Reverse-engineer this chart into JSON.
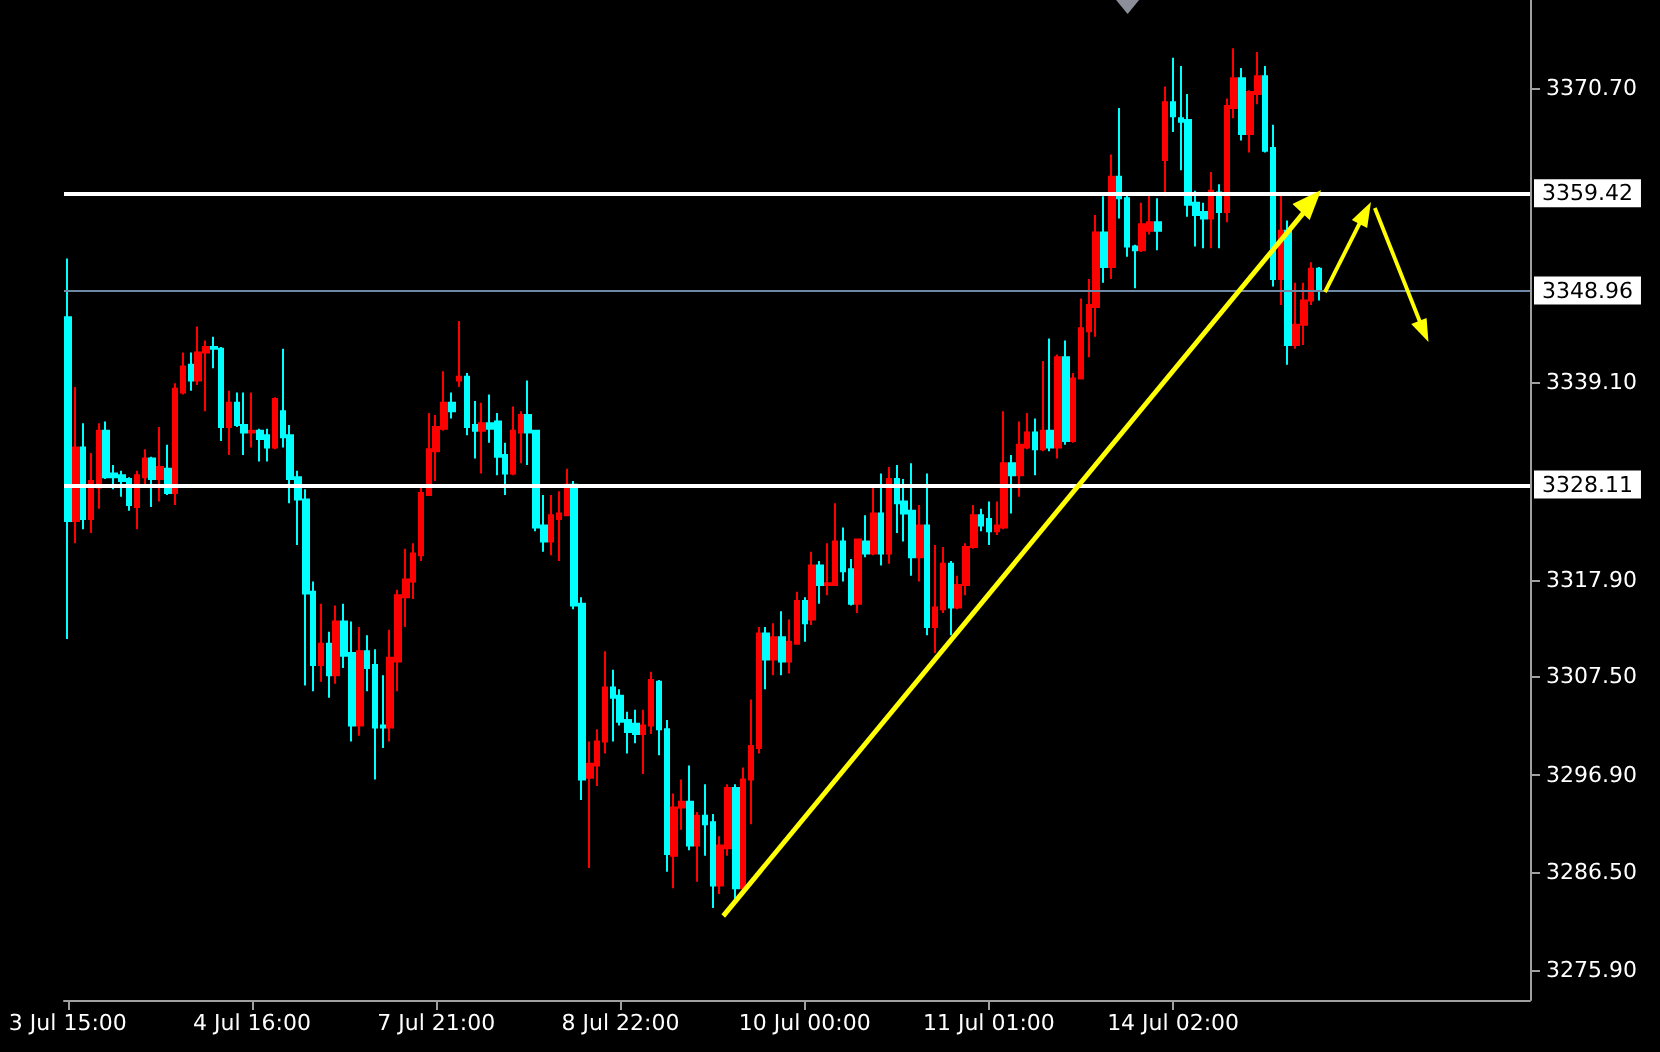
{
  "chart_data": {
    "type": "candlestick",
    "categories": [
      "3 Jul 15:00",
      null,
      null,
      null,
      null,
      null,
      null,
      null,
      null,
      null,
      null,
      null,
      null,
      null,
      null,
      null,
      null,
      null,
      null,
      null,
      null,
      null,
      null,
      null,
      "4 Jul 16:00",
      null,
      null,
      null,
      null,
      null,
      null,
      null,
      null,
      null,
      null,
      null,
      null,
      null,
      null,
      null,
      null,
      null,
      null,
      null,
      null,
      null,
      null,
      null,
      "7 Jul 21:00",
      null,
      null,
      null,
      null,
      null,
      null,
      null,
      null,
      null,
      null,
      null,
      null,
      null,
      null,
      null,
      null,
      null,
      null,
      null,
      null,
      null,
      null,
      null,
      "8 Jul 22:00",
      null,
      null,
      null,
      null,
      null,
      null,
      null,
      null,
      null,
      null,
      null,
      null,
      null,
      null,
      null,
      null,
      null,
      null,
      null,
      null,
      null,
      null,
      null,
      "10 Jul 00:00",
      null,
      null,
      null,
      null,
      null,
      null,
      null,
      null,
      null,
      null,
      null,
      null,
      null,
      null,
      null,
      null,
      null,
      null,
      null,
      null,
      null,
      null,
      null,
      "11 Jul 01:00",
      null,
      null,
      null,
      null,
      null,
      null,
      null,
      null,
      null,
      null,
      null,
      null,
      null,
      null,
      null,
      null,
      null,
      null,
      null,
      null,
      null,
      null,
      null,
      "14 Jul 02:00",
      null,
      null,
      null,
      null,
      null,
      null,
      null,
      null,
      null,
      null,
      null,
      null,
      null,
      null,
      null,
      null,
      null,
      null,
      null,
      null,
      null,
      null,
      null,
      null,
      null,
      null,
      null,
      null,
      null,
      null,
      null,
      null,
      null,
      null,
      null,
      null,
      null,
      null,
      null,
      null,
      null,
      null,
      null,
      null,
      null,
      null
    ],
    "ohlc": [
      [
        3346.1,
        3352.4,
        3311.5,
        3324.2
      ],
      [
        3324.2,
        3338.6,
        3321.8,
        3332.1
      ],
      [
        3332.1,
        3334.7,
        3323.3,
        3324.4
      ],
      [
        3324.4,
        3331.5,
        3322.9,
        3328.5
      ],
      [
        3327.8,
        3334.7,
        3325.5,
        3333.9
      ],
      [
        3333.9,
        3334.9,
        3328.7,
        3328.9
      ],
      [
        3329.3,
        3330.2,
        3327.6,
        3328.9
      ],
      [
        3329.1,
        3329.6,
        3326.8,
        3328.5
      ],
      [
        3328.7,
        3328.9,
        3325.3,
        3325.9
      ],
      [
        3325.7,
        3329.6,
        3323.3,
        3329.1
      ],
      [
        3328.9,
        3331.9,
        3328.1,
        3330.9
      ],
      [
        3330.9,
        3331.1,
        3325.7,
        3328.7
      ],
      [
        3328.7,
        3334.3,
        3326.3,
        3330.0
      ],
      [
        3329.8,
        3332.4,
        3327.0,
        3327.2
      ],
      [
        3327.2,
        3339.0,
        3325.9,
        3338.4
      ],
      [
        3338.0,
        3342.3,
        3337.8,
        3340.8
      ],
      [
        3341.0,
        3342.3,
        3338.2,
        3339.3
      ],
      [
        3339.3,
        3345.1,
        3338.8,
        3342.3
      ],
      [
        3342.3,
        3343.6,
        3336.0,
        3342.9
      ],
      [
        3342.9,
        3344.0,
        3340.6,
        3342.7
      ],
      [
        3342.7,
        3342.9,
        3332.8,
        3334.3
      ],
      [
        3334.3,
        3338.2,
        3331.3,
        3336.9
      ],
      [
        3336.9,
        3338.0,
        3334.3,
        3334.5
      ],
      [
        3334.5,
        3338.0,
        3331.3,
        3333.7
      ],
      [
        3333.7,
        3338.0,
        3332.1,
        3333.9
      ],
      [
        3333.9,
        3334.1,
        3330.6,
        3333.0
      ],
      [
        3333.4,
        3334.1,
        3330.6,
        3332.1
      ],
      [
        3332.1,
        3337.5,
        3331.9,
        3337.3
      ],
      [
        3336.0,
        3342.7,
        3332.1,
        3333.2
      ],
      [
        3333.4,
        3334.5,
        3326.1,
        3328.7
      ],
      [
        3328.9,
        3329.6,
        3321.6,
        3326.5
      ],
      [
        3326.5,
        3327.6,
        3306.5,
        3316.4
      ],
      [
        3316.6,
        3317.7,
        3305.9,
        3308.7
      ],
      [
        3308.7,
        3315.3,
        3306.9,
        3311.0
      ],
      [
        3311.0,
        3312.3,
        3305.2,
        3307.6
      ],
      [
        3307.6,
        3315.1,
        3306.7,
        3313.4
      ],
      [
        3313.4,
        3315.3,
        3308.4,
        3309.7
      ],
      [
        3310.0,
        3313.4,
        3300.5,
        3302.2
      ],
      [
        3302.2,
        3312.8,
        3301.1,
        3310.2
      ],
      [
        3310.2,
        3311.9,
        3305.9,
        3308.4
      ],
      [
        3308.7,
        3310.4,
        3296.4,
        3302.0
      ],
      [
        3302.2,
        3307.6,
        3299.8,
        3302.0
      ],
      [
        3302.0,
        3312.5,
        3300.5,
        3309.5
      ],
      [
        3309.1,
        3316.8,
        3305.9,
        3316.2
      ],
      [
        3316.0,
        3321.2,
        3312.8,
        3317.9
      ],
      [
        3317.7,
        3321.8,
        3315.8,
        3320.7
      ],
      [
        3320.5,
        3327.8,
        3319.9,
        3327.2
      ],
      [
        3327.0,
        3335.8,
        3327.0,
        3331.9
      ],
      [
        3331.7,
        3335.6,
        3328.5,
        3334.3
      ],
      [
        3334.1,
        3340.3,
        3333.9,
        3336.9
      ],
      [
        3336.9,
        3338.0,
        3335.2,
        3336.0
      ],
      [
        3339.3,
        3345.7,
        3338.6,
        3339.7
      ],
      [
        3339.7,
        3340.1,
        3333.4,
        3334.3
      ],
      [
        3334.5,
        3337.1,
        3330.9,
        3333.9
      ],
      [
        3333.9,
        3336.9,
        3329.3,
        3334.7
      ],
      [
        3334.7,
        3337.8,
        3332.6,
        3334.1
      ],
      [
        3334.9,
        3335.8,
        3329.1,
        3331.1
      ],
      [
        3331.3,
        3332.6,
        3327.0,
        3329.3
      ],
      [
        3329.3,
        3336.5,
        3329.1,
        3333.9
      ],
      [
        3333.7,
        3336.0,
        3330.4,
        3335.6
      ],
      [
        3335.6,
        3339.3,
        3330.2,
        3333.7
      ],
      [
        3333.9,
        3333.9,
        3323.1,
        3323.5
      ],
      [
        3323.7,
        3327.0,
        3320.9,
        3322.0
      ],
      [
        3322.0,
        3327.0,
        3320.5,
        3324.8
      ],
      [
        3324.4,
        3327.4,
        3319.9,
        3325.0
      ],
      [
        3324.8,
        3329.8,
        3324.8,
        3328.1
      ],
      [
        3328.1,
        3328.5,
        3314.7,
        3315.1
      ],
      [
        3315.3,
        3316.0,
        3294.2,
        3296.4
      ],
      [
        3296.6,
        3300.5,
        3286.9,
        3298.1
      ],
      [
        3297.9,
        3301.8,
        3295.7,
        3300.5
      ],
      [
        3300.5,
        3310.2,
        3299.2,
        3306.3
      ],
      [
        3306.3,
        3308.2,
        3300.5,
        3305.2
      ],
      [
        3305.4,
        3306.1,
        3302.2,
        3302.6
      ],
      [
        3302.8,
        3303.7,
        3299.2,
        3301.5
      ],
      [
        3302.4,
        3303.9,
        3300.3,
        3301.3
      ],
      [
        3301.3,
        3303.9,
        3297.0,
        3302.2
      ],
      [
        3302.2,
        3308.0,
        3301.3,
        3307.1
      ],
      [
        3306.9,
        3307.1,
        3299.0,
        3301.8
      ],
      [
        3301.8,
        3302.8,
        3286.5,
        3288.4
      ],
      [
        3288.2,
        3294.9,
        3284.7,
        3293.4
      ],
      [
        3293.4,
        3296.4,
        3291.0,
        3294.0
      ],
      [
        3294.0,
        3297.9,
        3288.8,
        3289.3
      ],
      [
        3289.3,
        3292.9,
        3285.4,
        3292.5
      ],
      [
        3292.5,
        3295.9,
        3288.2,
        3291.6
      ],
      [
        3291.8,
        3292.7,
        3282.6,
        3285.0
      ],
      [
        3285.0,
        3290.3,
        3284.1,
        3289.3
      ],
      [
        3289.0,
        3295.9,
        3288.2,
        3295.5
      ],
      [
        3295.5,
        3295.9,
        3283.2,
        3284.7
      ],
      [
        3284.7,
        3297.7,
        3284.7,
        3296.4
      ],
      [
        3296.4,
        3305.0,
        3291.6,
        3300.0
      ],
      [
        3299.8,
        3312.8,
        3299.2,
        3312.1
      ],
      [
        3312.1,
        3312.8,
        3306.1,
        3309.3
      ],
      [
        3309.3,
        3313.2,
        3307.6,
        3311.7
      ],
      [
        3311.7,
        3314.5,
        3307.6,
        3309.1
      ],
      [
        3309.1,
        3313.6,
        3307.8,
        3311.2
      ],
      [
        3311.0,
        3316.6,
        3311.0,
        3315.6
      ],
      [
        3315.6,
        3316.0,
        3311.2,
        3313.2
      ],
      [
        3313.6,
        3320.9,
        3313.0,
        3319.4
      ],
      [
        3319.4,
        3319.9,
        3315.3,
        3317.3
      ],
      [
        3317.3,
        3321.8,
        3316.2,
        3317.5
      ],
      [
        3317.3,
        3326.1,
        3317.3,
        3322.0
      ],
      [
        3322.0,
        3323.5,
        3317.7,
        3318.8
      ],
      [
        3319.0,
        3320.1,
        3315.1,
        3315.3
      ],
      [
        3315.3,
        3322.2,
        3314.3,
        3322.2
      ],
      [
        3322.0,
        3324.8,
        3320.3,
        3320.7
      ],
      [
        3320.7,
        3328.1,
        3320.5,
        3325.0
      ],
      [
        3325.0,
        3329.3,
        3319.4,
        3320.7
      ],
      [
        3320.7,
        3330.0,
        3319.6,
        3328.7
      ],
      [
        3328.7,
        3330.2,
        3322.9,
        3326.1
      ],
      [
        3326.3,
        3328.7,
        3322.0,
        3325.0
      ],
      [
        3325.3,
        3330.4,
        3318.3,
        3320.3
      ],
      [
        3320.3,
        3325.9,
        3317.7,
        3323.7
      ],
      [
        3323.7,
        3329.3,
        3311.9,
        3312.8
      ],
      [
        3312.8,
        3321.6,
        3310.0,
        3314.9
      ],
      [
        3314.7,
        3321.4,
        3314.3,
        3319.6
      ],
      [
        3319.6,
        3319.9,
        3311.9,
        3314.9
      ],
      [
        3314.9,
        3318.3,
        3314.7,
        3317.3
      ],
      [
        3317.3,
        3321.8,
        3316.2,
        3321.4
      ],
      [
        3321.4,
        3325.9,
        3321.2,
        3324.8
      ],
      [
        3324.8,
        3325.5,
        3323.1,
        3323.7
      ],
      [
        3324.4,
        3326.3,
        3321.6,
        3323.1
      ],
      [
        3323.1,
        3326.3,
        3322.7,
        3323.7
      ],
      [
        3323.5,
        3336.0,
        3323.3,
        3330.4
      ],
      [
        3330.4,
        3331.3,
        3325.0,
        3329.1
      ],
      [
        3329.1,
        3334.9,
        3326.8,
        3332.4
      ],
      [
        3332.1,
        3335.8,
        3331.9,
        3333.7
      ],
      [
        3333.7,
        3335.2,
        3329.1,
        3331.9
      ],
      [
        3331.9,
        3341.4,
        3331.7,
        3333.9
      ],
      [
        3333.9,
        3343.8,
        3331.7,
        3332.1
      ],
      [
        3332.1,
        3342.1,
        3330.9,
        3341.8
      ],
      [
        3341.8,
        3343.6,
        3332.4,
        3332.8
      ],
      [
        3332.8,
        3340.1,
        3332.6,
        3339.5
      ],
      [
        3339.5,
        3348.1,
        3339.5,
        3344.9
      ],
      [
        3344.6,
        3350.2,
        3341.8,
        3347.4
      ],
      [
        3347.2,
        3357.1,
        3344.0,
        3355.2
      ],
      [
        3355.2,
        3359.1,
        3349.8,
        3351.5
      ],
      [
        3351.5,
        3363.6,
        3350.2,
        3361.2
      ],
      [
        3361.2,
        3368.6,
        3356.7,
        3358.9
      ],
      [
        3358.9,
        3359.5,
        3352.6,
        3353.7
      ],
      [
        3353.7,
        3353.9,
        3349.2,
        3353.3
      ],
      [
        3353.3,
        3358.4,
        3353.1,
        3356.1
      ],
      [
        3355.4,
        3359.5,
        3355.0,
        3356.3
      ],
      [
        3356.3,
        3358.9,
        3353.3,
        3355.4
      ],
      [
        3363.0,
        3370.9,
        3359.1,
        3369.2
      ],
      [
        3369.2,
        3374.0,
        3366.0,
        3367.7
      ],
      [
        3367.5,
        3373.1,
        3361.9,
        3367.1
      ],
      [
        3367.3,
        3370.1,
        3356.9,
        3358.2
      ],
      [
        3358.4,
        3359.7,
        3353.7,
        3357.1
      ],
      [
        3357.4,
        3358.4,
        3353.5,
        3356.7
      ],
      [
        3356.7,
        3361.7,
        3353.5,
        3359.7
      ],
      [
        3359.5,
        3360.4,
        3353.5,
        3357.4
      ],
      [
        3357.4,
        3369.6,
        3356.3,
        3368.8
      ],
      [
        3368.6,
        3375.0,
        3367.5,
        3371.8
      ],
      [
        3371.8,
        3372.9,
        3365.1,
        3365.8
      ],
      [
        3365.8,
        3370.5,
        3363.8,
        3370.3
      ],
      [
        3370.1,
        3374.6,
        3369.0,
        3372.0
      ],
      [
        3372.0,
        3373.1,
        3363.8,
        3364.0
      ],
      [
        3364.3,
        3366.8,
        3349.4,
        3350.2
      ],
      [
        3350.2,
        3359.3,
        3347.4,
        3355.4
      ],
      [
        3355.4,
        3356.5,
        3341.0,
        3343.1
      ],
      [
        3343.1,
        3349.8,
        3342.7,
        3345.3
      ],
      [
        3345.3,
        3349.8,
        3343.1,
        3347.9
      ],
      [
        3347.9,
        3352.0,
        3347.4,
        3351.3
      ],
      [
        3351.3,
        3351.5,
        3347.9,
        3349.0
      ],
      null,
      null,
      null,
      null,
      null,
      null,
      null,
      null,
      null,
      null,
      null,
      null,
      null,
      null,
      null,
      null,
      null,
      null,
      null,
      null,
      null,
      null,
      null,
      null,
      null,
      null,
      null
    ],
    "colors": [
      "#00ffff",
      "#ff0000",
      "#00ffff",
      "#ff0000",
      "#ff0000",
      "#00ffff",
      "#00ffff",
      "#00ffff",
      "#00ffff",
      "#ff0000",
      "#ff0000",
      "#00ffff",
      "#ff0000",
      "#00ffff",
      "#ff0000",
      "#ff0000",
      "#00ffff",
      "#ff0000",
      "#ff0000",
      "#00ffff",
      "#00ffff",
      "#ff0000",
      "#00ffff",
      "#00ffff",
      "#ff0000",
      "#00ffff",
      "#00ffff",
      "#ff0000",
      "#00ffff",
      "#00ffff",
      "#00ffff",
      "#00ffff",
      "#00ffff",
      "#ff0000",
      "#00ffff",
      "#ff0000",
      "#00ffff",
      "#00ffff",
      "#ff0000",
      "#00ffff",
      "#00ffff",
      "#00ffff",
      "#ff0000",
      "#ff0000",
      "#ff0000",
      "#ff0000",
      "#ff0000",
      "#ff0000",
      "#ff0000",
      "#ff0000",
      "#00ffff",
      "#ff0000",
      "#00ffff",
      "#00ffff",
      "#ff0000",
      "#00ffff",
      "#00ffff",
      "#00ffff",
      "#ff0000",
      "#ff0000",
      "#00ffff",
      "#00ffff",
      "#00ffff",
      "#ff0000",
      "#ff0000",
      "#ff0000",
      "#00ffff",
      "#00ffff",
      "#ff0000",
      "#ff0000",
      "#ff0000",
      "#00ffff",
      "#00ffff",
      "#00ffff",
      "#00ffff",
      "#ff0000",
      "#ff0000",
      "#00ffff",
      "#00ffff",
      "#ff0000",
      "#ff0000",
      "#00ffff",
      "#ff0000",
      "#00ffff",
      "#00ffff",
      "#ff0000",
      "#ff0000",
      "#00ffff",
      "#ff0000",
      "#ff0000",
      "#ff0000",
      "#00ffff",
      "#ff0000",
      "#00ffff",
      "#ff0000",
      "#ff0000",
      "#00ffff",
      "#ff0000",
      "#00ffff",
      "#ff0000",
      "#ff0000",
      "#00ffff",
      "#00ffff",
      "#ff0000",
      "#00ffff",
      "#ff0000",
      "#00ffff",
      "#ff0000",
      "#00ffff",
      "#00ffff",
      "#00ffff",
      "#ff0000",
      "#00ffff",
      "#ff0000",
      "#ff0000",
      "#00ffff",
      "#ff0000",
      "#ff0000",
      "#ff0000",
      "#00ffff",
      "#00ffff",
      "#ff0000",
      "#ff0000",
      "#00ffff",
      "#ff0000",
      "#ff0000",
      "#00ffff",
      "#ff0000",
      "#00ffff",
      "#ff0000",
      "#00ffff",
      "#ff0000",
      "#ff0000",
      "#ff0000",
      "#ff0000",
      "#00ffff",
      "#ff0000",
      "#00ffff",
      "#00ffff",
      "#00ffff",
      "#ff0000",
      "#ff0000",
      "#00ffff",
      "#ff0000",
      "#00ffff",
      "#00ffff",
      "#00ffff",
      "#00ffff",
      "#00ffff",
      "#ff0000",
      "#00ffff",
      "#ff0000",
      "#ff0000",
      "#00ffff",
      "#ff0000",
      "#ff0000",
      "#00ffff",
      "#00ffff",
      "#ff0000",
      "#00ffff",
      "#ff0000",
      "#ff0000",
      "#ff0000",
      "#00ffff",
      null,
      null,
      null,
      null,
      null,
      null,
      null,
      null,
      null,
      null,
      null,
      null,
      null,
      null,
      null,
      null,
      null,
      null,
      null,
      null,
      null,
      null,
      null,
      null,
      null,
      null,
      null
    ],
    "ylim": [
      3272.7,
      3380.2
    ],
    "yticks": [
      {
        "value": 3275.9,
        "label": "3275.90"
      },
      {
        "value": 3286.5,
        "label": "3286.50"
      },
      {
        "value": 3296.9,
        "label": "3296.90"
      },
      {
        "value": 3307.5,
        "label": "3307.50"
      },
      {
        "value": 3317.9,
        "label": "3317.90"
      },
      {
        "value": 3339.1,
        "label": "3339.10"
      },
      {
        "value": 3370.7,
        "label": "3370.70"
      }
    ],
    "ref_lines": [
      {
        "axis": "y",
        "value": 3359.42,
        "label": "3359.42",
        "color": "#ffffff"
      },
      {
        "axis": "y",
        "value": 3348.96,
        "label": "3348.96",
        "color": "#6f8aa6"
      },
      {
        "axis": "y",
        "value": 3328.11,
        "label": "3328.11",
        "color": "#ffffff"
      }
    ]
  }
}
